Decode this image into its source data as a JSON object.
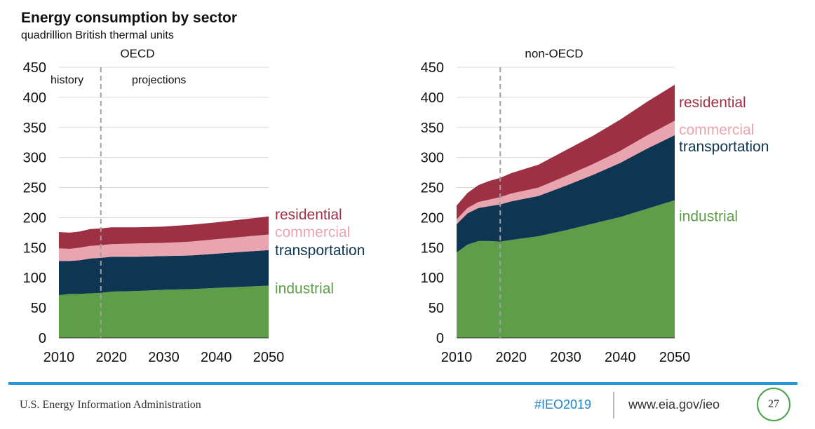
{
  "header": {
    "title": "Energy consumption by sector",
    "subtitle": "quadrillion British thermal units"
  },
  "colors": {
    "industrial": "#5e9e48",
    "transportation": "#0e3551",
    "commercial": "#e8a5b0",
    "residential": "#9e3044",
    "grid": "#d9d9d9",
    "divider": "#a0a0a0",
    "footer_accent": "#2a95d3",
    "hashtag": "#1f86c8",
    "page_circle": "#4aa44a"
  },
  "chart_data": [
    {
      "type": "area",
      "subtitle": "OECD",
      "stacked": true,
      "x": [
        2010,
        2012,
        2014,
        2016,
        2018,
        2020,
        2025,
        2030,
        2035,
        2040,
        2045,
        2050
      ],
      "ylim": [
        0,
        450
      ],
      "yticks": [
        "0",
        "50",
        "100",
        "150",
        "200",
        "250",
        "300",
        "350",
        "400",
        "450"
      ],
      "xticks": [
        "2010",
        "2020",
        "2030",
        "2040",
        "2050"
      ],
      "grid": true,
      "divider_year": 2018,
      "region_labels": [
        "history",
        "projections"
      ],
      "series": [
        {
          "name": "industrial",
          "values": [
            71,
            73,
            73,
            74,
            75,
            77,
            78,
            80,
            81,
            83,
            85,
            87
          ]
        },
        {
          "name": "transportation",
          "values": [
            57,
            55,
            56,
            58,
            58,
            58,
            57,
            56,
            56,
            57,
            58,
            59
          ]
        },
        {
          "name": "commercial",
          "values": [
            21,
            20,
            21,
            21,
            21,
            21,
            22,
            22,
            23,
            24,
            25,
            26
          ]
        },
        {
          "name": "residential",
          "values": [
            27,
            27,
            27,
            28,
            28,
            28,
            27,
            27,
            28,
            28,
            29,
            30
          ]
        }
      ]
    },
    {
      "type": "area",
      "subtitle": "non-OECD",
      "stacked": true,
      "x": [
        2010,
        2012,
        2014,
        2016,
        2018,
        2020,
        2025,
        2030,
        2035,
        2040,
        2045,
        2050
      ],
      "ylim": [
        0,
        450
      ],
      "yticks": [
        "0",
        "50",
        "100",
        "150",
        "200",
        "250",
        "300",
        "350",
        "400",
        "450"
      ],
      "xticks": [
        "2010",
        "2020",
        "2030",
        "2040",
        "2050"
      ],
      "grid": true,
      "divider_year": 2018,
      "series": [
        {
          "name": "industrial",
          "values": [
            142,
            155,
            161,
            161,
            160,
            163,
            169,
            179,
            190,
            201,
            215,
            229
          ]
        },
        {
          "name": "transportation",
          "values": [
            47,
            52,
            55,
            58,
            62,
            64,
            67,
            74,
            81,
            90,
            100,
            108
          ]
        },
        {
          "name": "commercial",
          "values": [
            8,
            9,
            10,
            11,
            12,
            13,
            14,
            16,
            18,
            20,
            22,
            24
          ]
        },
        {
          "name": "residential",
          "values": [
            23,
            25,
            28,
            31,
            32,
            34,
            38,
            43,
            47,
            52,
            56,
            60
          ]
        }
      ]
    }
  ],
  "footer": {
    "agency": "U.S. Energy Information Administration",
    "hashtag": "#IEO2019",
    "url": "www.eia.gov/ieo",
    "page_number": "27"
  }
}
